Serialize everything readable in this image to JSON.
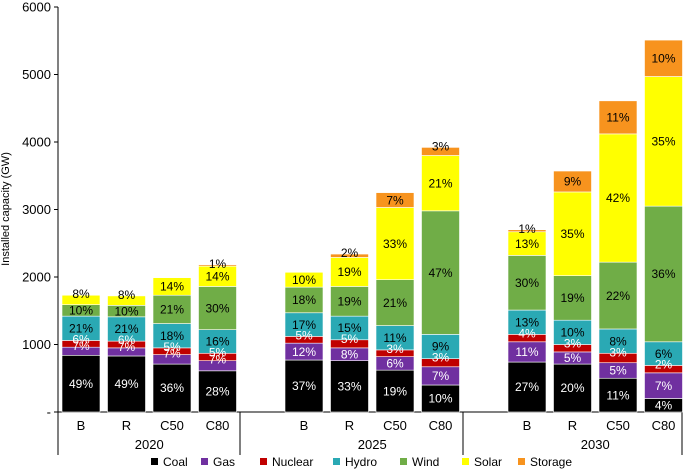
{
  "chart_data": {
    "type": "bar",
    "stacked": true,
    "ylabel": "Installed capacity (GW)",
    "ylim": [
      0,
      6000
    ],
    "yticks": [
      "-",
      "1000",
      "2000",
      "3000",
      "4000",
      "5000",
      "6000"
    ],
    "grid": false,
    "legend_position": "bottom",
    "groups": [
      {
        "name": "2020",
        "categories": [
          "B",
          "R",
          "C50",
          "C80"
        ]
      },
      {
        "name": "2025",
        "categories": [
          "B",
          "R",
          "C50",
          "C80"
        ]
      },
      {
        "name": "2030",
        "categories": [
          "B",
          "R",
          "C50",
          "C80"
        ]
      }
    ],
    "series": [
      {
        "name": "Coal",
        "color": "#000000",
        "values": [
          840,
          830,
          710,
          610,
          770,
          760,
          620,
          400,
          740,
          710,
          500,
          200
        ],
        "labels": [
          "49%",
          "49%",
          "36%",
          "28%",
          "37%",
          "33%",
          "19%",
          "10%",
          "27%",
          "20%",
          "11%",
          "4%"
        ]
      },
      {
        "name": "Gas",
        "color": "#7030a0",
        "values": [
          120,
          120,
          140,
          150,
          250,
          190,
          200,
          270,
          300,
          180,
          230,
          380
        ],
        "labels": [
          "7%",
          "7%",
          "7%",
          "7%",
          "12%",
          "8%",
          "6%",
          "7%",
          "11%",
          "5%",
          "5%",
          "7%"
        ]
      },
      {
        "name": "Nuclear",
        "color": "#c00000",
        "values": [
          100,
          100,
          100,
          110,
          100,
          120,
          100,
          120,
          110,
          110,
          140,
          110
        ],
        "labels": [
          "6%",
          "6%",
          "5%",
          "5%",
          "5%",
          "5%",
          "3%",
          "3%",
          "4%",
          "3%",
          "3%",
          "2%"
        ]
      },
      {
        "name": "Hydro",
        "color": "#2aa9b4",
        "values": [
          360,
          360,
          360,
          350,
          350,
          350,
          360,
          360,
          360,
          360,
          360,
          350
        ],
        "labels": [
          "21%",
          "21%",
          "18%",
          "16%",
          "17%",
          "15%",
          "11%",
          "9%",
          "13%",
          "10%",
          "8%",
          "6%"
        ]
      },
      {
        "name": "Wind",
        "color": "#70ad47",
        "values": [
          170,
          170,
          420,
          640,
          380,
          440,
          680,
          1830,
          810,
          660,
          990,
          2010
        ],
        "labels": [
          "10%",
          "10%",
          "21%",
          "30%",
          "18%",
          "19%",
          "21%",
          "47%",
          "30%",
          "19%",
          "22%",
          "36%"
        ]
      },
      {
        "name": "Solar",
        "color": "#ffff00",
        "values": [
          140,
          140,
          260,
          300,
          220,
          430,
          1070,
          820,
          350,
          1240,
          1900,
          1920
        ],
        "labels": [
          "8%",
          "8%",
          "14%",
          "14%",
          "10%",
          "19%",
          "33%",
          "21%",
          "13%",
          "35%",
          "42%",
          "35%"
        ]
      },
      {
        "name": "Storage",
        "color": "#f7931e",
        "values": [
          0,
          0,
          0,
          20,
          0,
          50,
          220,
          120,
          30,
          310,
          490,
          540
        ],
        "labels": [
          "",
          "",
          "",
          "1%",
          "",
          "2%",
          "7%",
          "3%",
          "1%",
          "9%",
          "11%",
          "10%"
        ]
      }
    ]
  }
}
